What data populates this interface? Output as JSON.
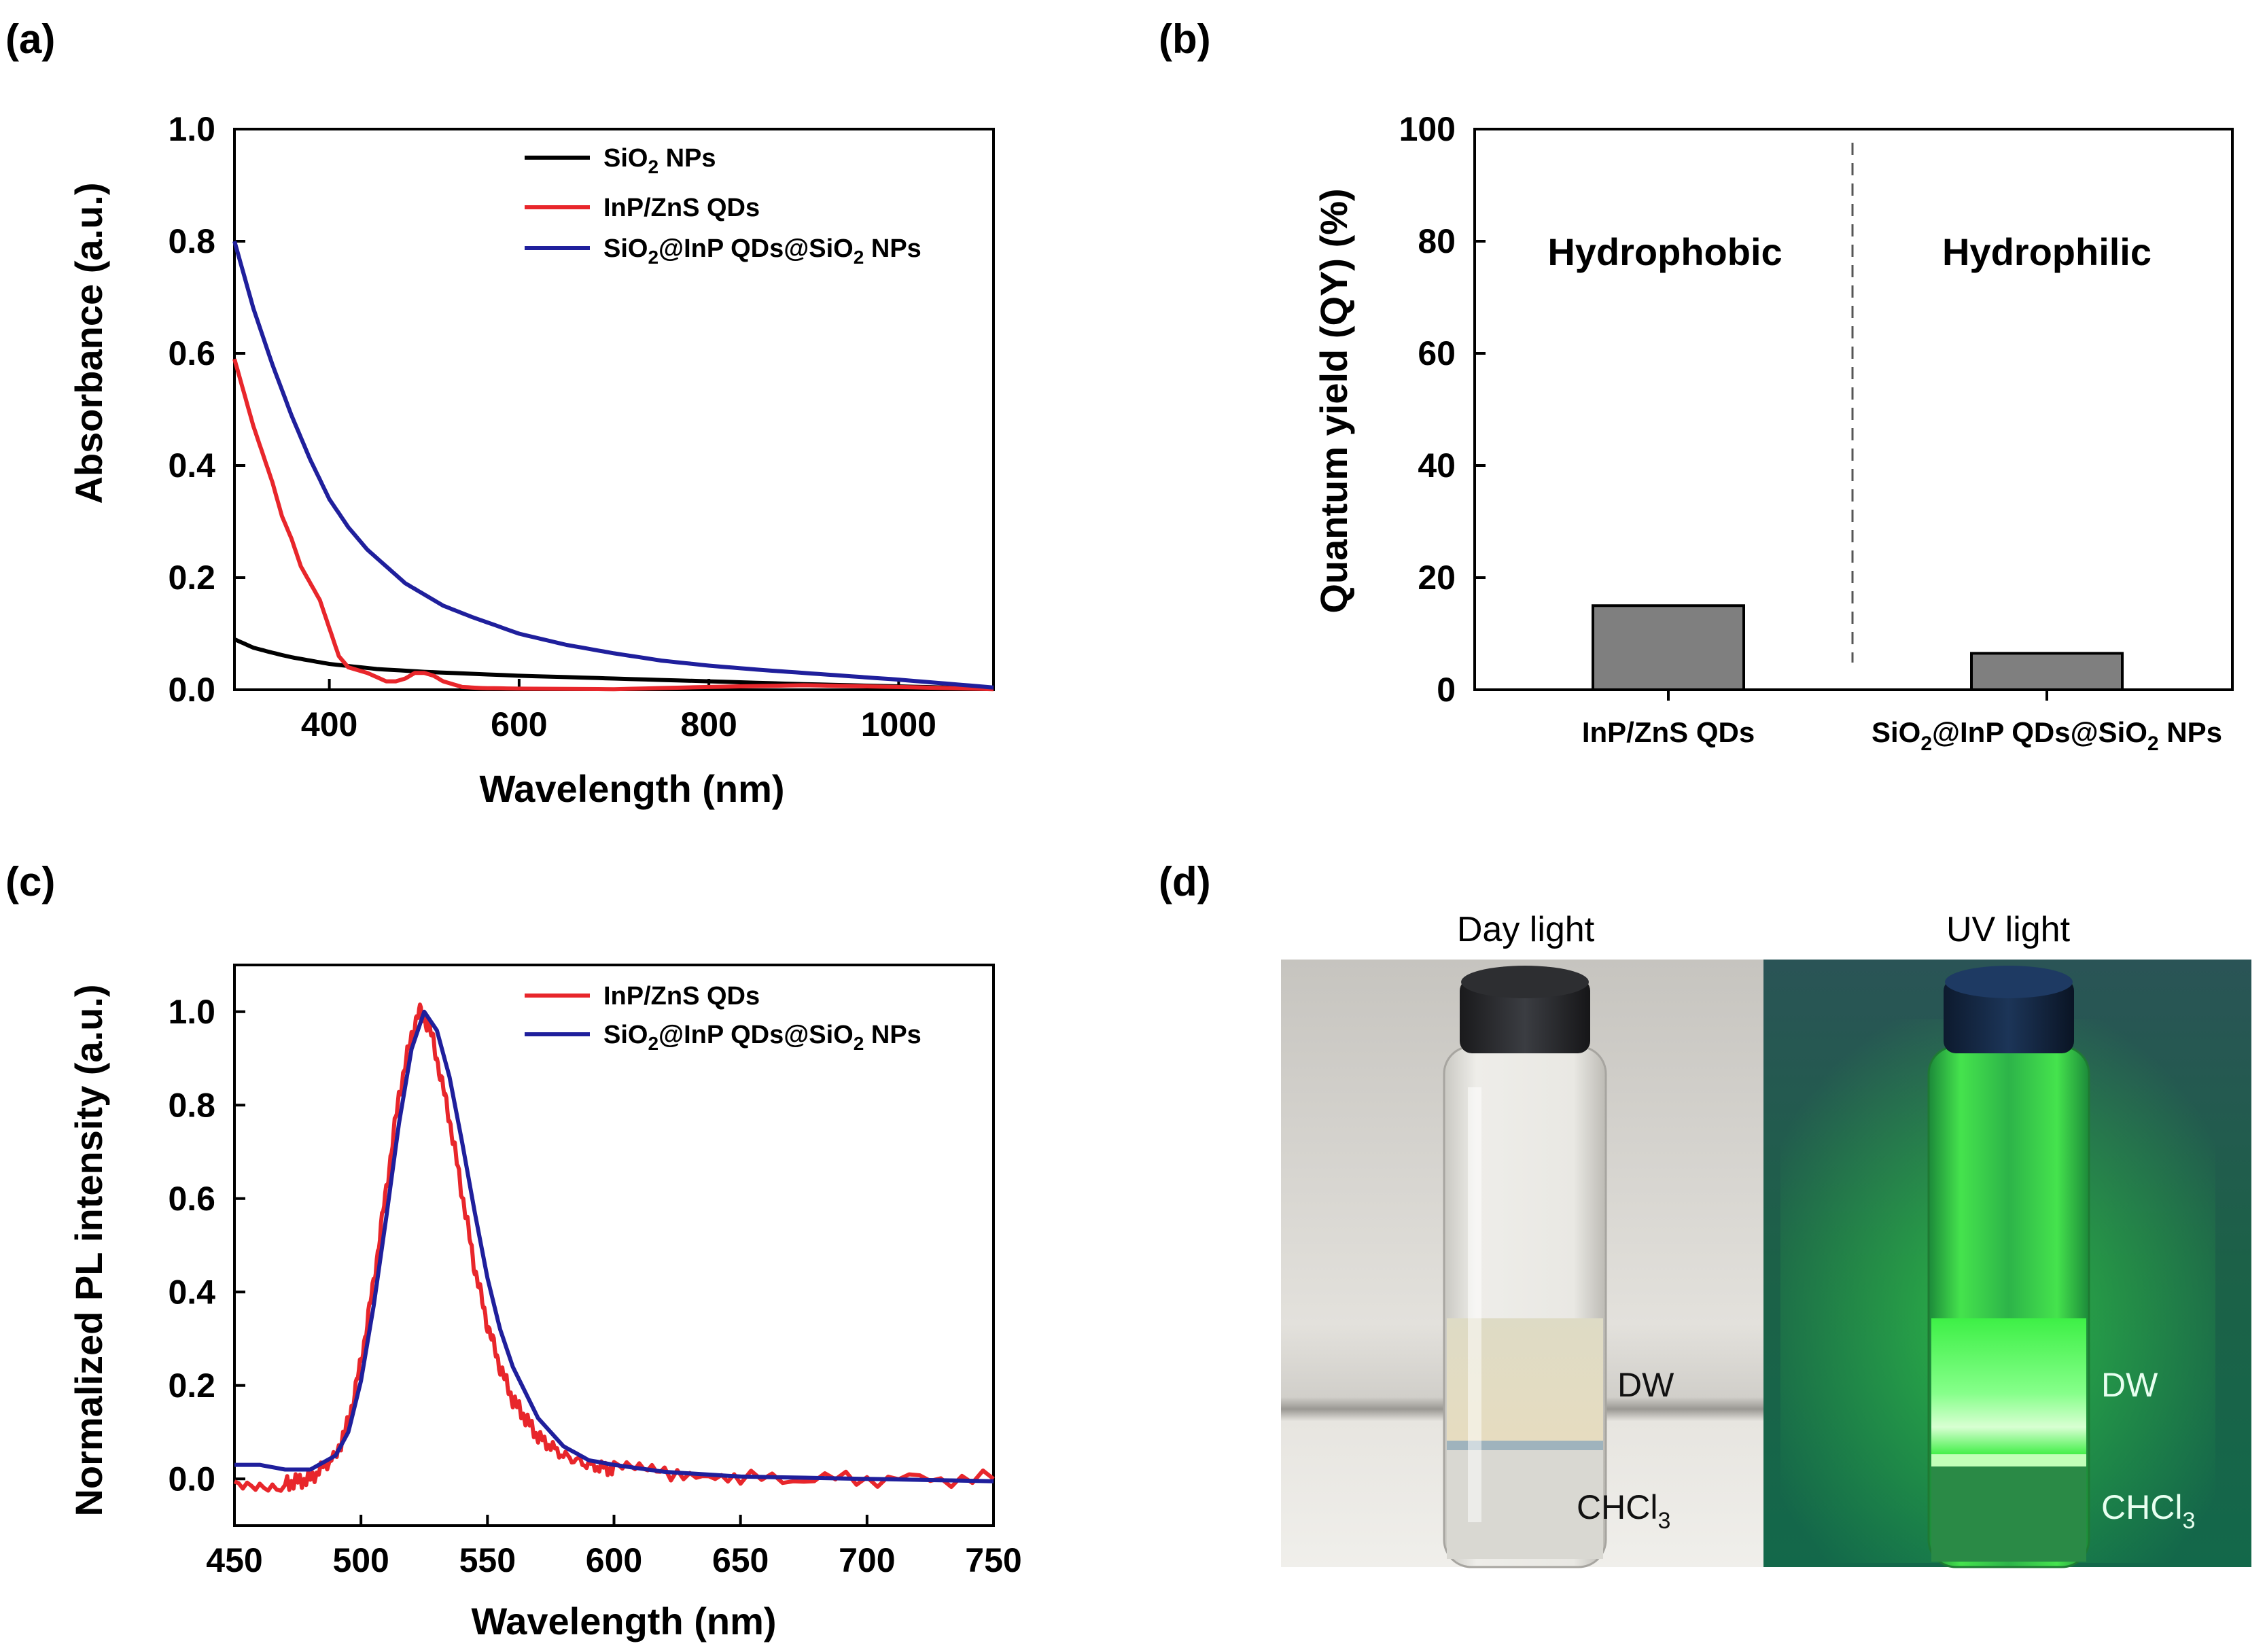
{
  "colors": {
    "sio2": "#000000",
    "inp": "#e8262b",
    "composite": "#1f1f9c",
    "bar": "#7f7f7f",
    "glow": "#34ff3a"
  },
  "chart_data": [
    {
      "id": "a",
      "panel_label": "(a)",
      "type": "line",
      "xlabel": "Wavelength (nm)",
      "ylabel": "Absorbance (a.u.)",
      "xlim": [
        300,
        1100
      ],
      "ylim": [
        0.0,
        1.0
      ],
      "xticks": [
        400,
        600,
        800,
        1000
      ],
      "yticks": [
        0.0,
        0.2,
        0.4,
        0.6,
        0.8,
        1.0
      ],
      "legend_position": "top-right",
      "series": [
        {
          "name": "SiO2 NPs",
          "name_parts": {
            "pre": "SiO",
            "sub": "2",
            "post": " NPs"
          },
          "color_key": "sio2",
          "x": [
            300,
            320,
            340,
            360,
            380,
            400,
            450,
            500,
            600,
            700,
            800,
            900,
            1000,
            1100
          ],
          "y": [
            0.09,
            0.075,
            0.066,
            0.058,
            0.052,
            0.046,
            0.037,
            0.032,
            0.025,
            0.02,
            0.015,
            0.01,
            0.006,
            0.002
          ]
        },
        {
          "name": "InP/ZnS QDs",
          "color_key": "inp",
          "x": [
            300,
            310,
            320,
            330,
            340,
            350,
            360,
            370,
            380,
            390,
            400,
            410,
            420,
            440,
            460,
            470,
            480,
            490,
            500,
            510,
            520,
            540,
            560,
            600,
            700,
            800,
            900,
            1000,
            1100
          ],
          "y": [
            0.59,
            0.53,
            0.47,
            0.42,
            0.37,
            0.31,
            0.27,
            0.22,
            0.19,
            0.16,
            0.11,
            0.06,
            0.04,
            0.03,
            0.015,
            0.015,
            0.02,
            0.03,
            0.03,
            0.025,
            0.015,
            0.005,
            0.003,
            0.002,
            0.001,
            0.005,
            0.008,
            0.005,
            0.001
          ]
        },
        {
          "name": "SiO2@InP QDs@SiO2 NPs",
          "name_parts": {
            "pre": "SiO",
            "sub": "2",
            "mid": "@InP QDs@SiO",
            "sub2": "2",
            "post": " NPs"
          },
          "color_key": "composite",
          "x": [
            300,
            320,
            340,
            360,
            380,
            400,
            420,
            440,
            460,
            480,
            500,
            520,
            550,
            600,
            650,
            700,
            750,
            800,
            850,
            900,
            950,
            1000,
            1050,
            1100
          ],
          "y": [
            0.8,
            0.68,
            0.58,
            0.49,
            0.41,
            0.34,
            0.29,
            0.25,
            0.22,
            0.19,
            0.17,
            0.15,
            0.13,
            0.1,
            0.08,
            0.065,
            0.052,
            0.043,
            0.036,
            0.03,
            0.024,
            0.018,
            0.011,
            0.004
          ]
        }
      ]
    },
    {
      "id": "b",
      "panel_label": "(b)",
      "type": "bar",
      "ylabel": "Quantum yield (QY) (%)",
      "ylim": [
        0,
        100
      ],
      "yticks": [
        0,
        20,
        40,
        60,
        80,
        100
      ],
      "categories": [
        "InP/ZnS QDs",
        "SiO2@InP QDs@SiO2 NPs"
      ],
      "category_parts": [
        {
          "pre": "InP/ZnS QDs"
        },
        {
          "pre": "SiO",
          "sub": "2",
          "mid": "@InP QDs@SiO",
          "sub2": "2",
          "post": " NPs"
        }
      ],
      "values": [
        15,
        6.5
      ],
      "regions": [
        "Hydrophobic",
        "Hydrophilic"
      ]
    },
    {
      "id": "c",
      "panel_label": "(c)",
      "type": "line",
      "xlabel": "Wavelength (nm)",
      "ylabel": "Normalized PL intensity (a.u.)",
      "xlim": [
        450,
        750
      ],
      "ylim": [
        -0.1,
        1.1
      ],
      "xticks": [
        450,
        500,
        550,
        600,
        650,
        700,
        750
      ],
      "yticks": [
        0.0,
        0.2,
        0.4,
        0.6,
        0.8,
        1.0
      ],
      "legend_position": "top-right",
      "series": [
        {
          "name": "InP/ZnS QDs",
          "color_key": "inp",
          "noisy": true,
          "x": [
            450,
            470,
            480,
            490,
            495,
            500,
            505,
            510,
            515,
            520,
            523,
            527,
            530,
            535,
            540,
            545,
            550,
            555,
            560,
            570,
            580,
            590,
            600,
            620,
            650,
            700,
            750
          ],
          "y": [
            -0.01,
            -0.01,
            0.0,
            0.05,
            0.12,
            0.25,
            0.42,
            0.62,
            0.82,
            0.95,
            1.0,
            0.97,
            0.9,
            0.77,
            0.61,
            0.45,
            0.33,
            0.24,
            0.17,
            0.09,
            0.05,
            0.03,
            0.02,
            0.01,
            0.0,
            0.0,
            0.0
          ]
        },
        {
          "name": "SiO2@InP QDs@SiO2 NPs",
          "name_parts": {
            "pre": "SiO",
            "sub": "2",
            "mid": "@InP QDs@SiO",
            "sub2": "2",
            "post": " NPs"
          },
          "color_key": "composite",
          "x": [
            450,
            460,
            470,
            480,
            490,
            495,
            500,
            505,
            510,
            515,
            520,
            525,
            530,
            535,
            540,
            545,
            550,
            555,
            560,
            570,
            580,
            590,
            600,
            620,
            650,
            700,
            750
          ],
          "y": [
            0.03,
            0.03,
            0.02,
            0.02,
            0.05,
            0.1,
            0.21,
            0.37,
            0.56,
            0.76,
            0.92,
            1.0,
            0.96,
            0.86,
            0.72,
            0.57,
            0.43,
            0.32,
            0.24,
            0.13,
            0.07,
            0.04,
            0.03,
            0.015,
            0.005,
            0.0,
            -0.005
          ]
        }
      ]
    }
  ],
  "photo": {
    "panel_label": "(d)",
    "captions": [
      "Day light",
      "UV light"
    ],
    "layer_labels": {
      "top": "DW",
      "bottom": {
        "pre": "CHCl",
        "sub": "3"
      }
    }
  }
}
